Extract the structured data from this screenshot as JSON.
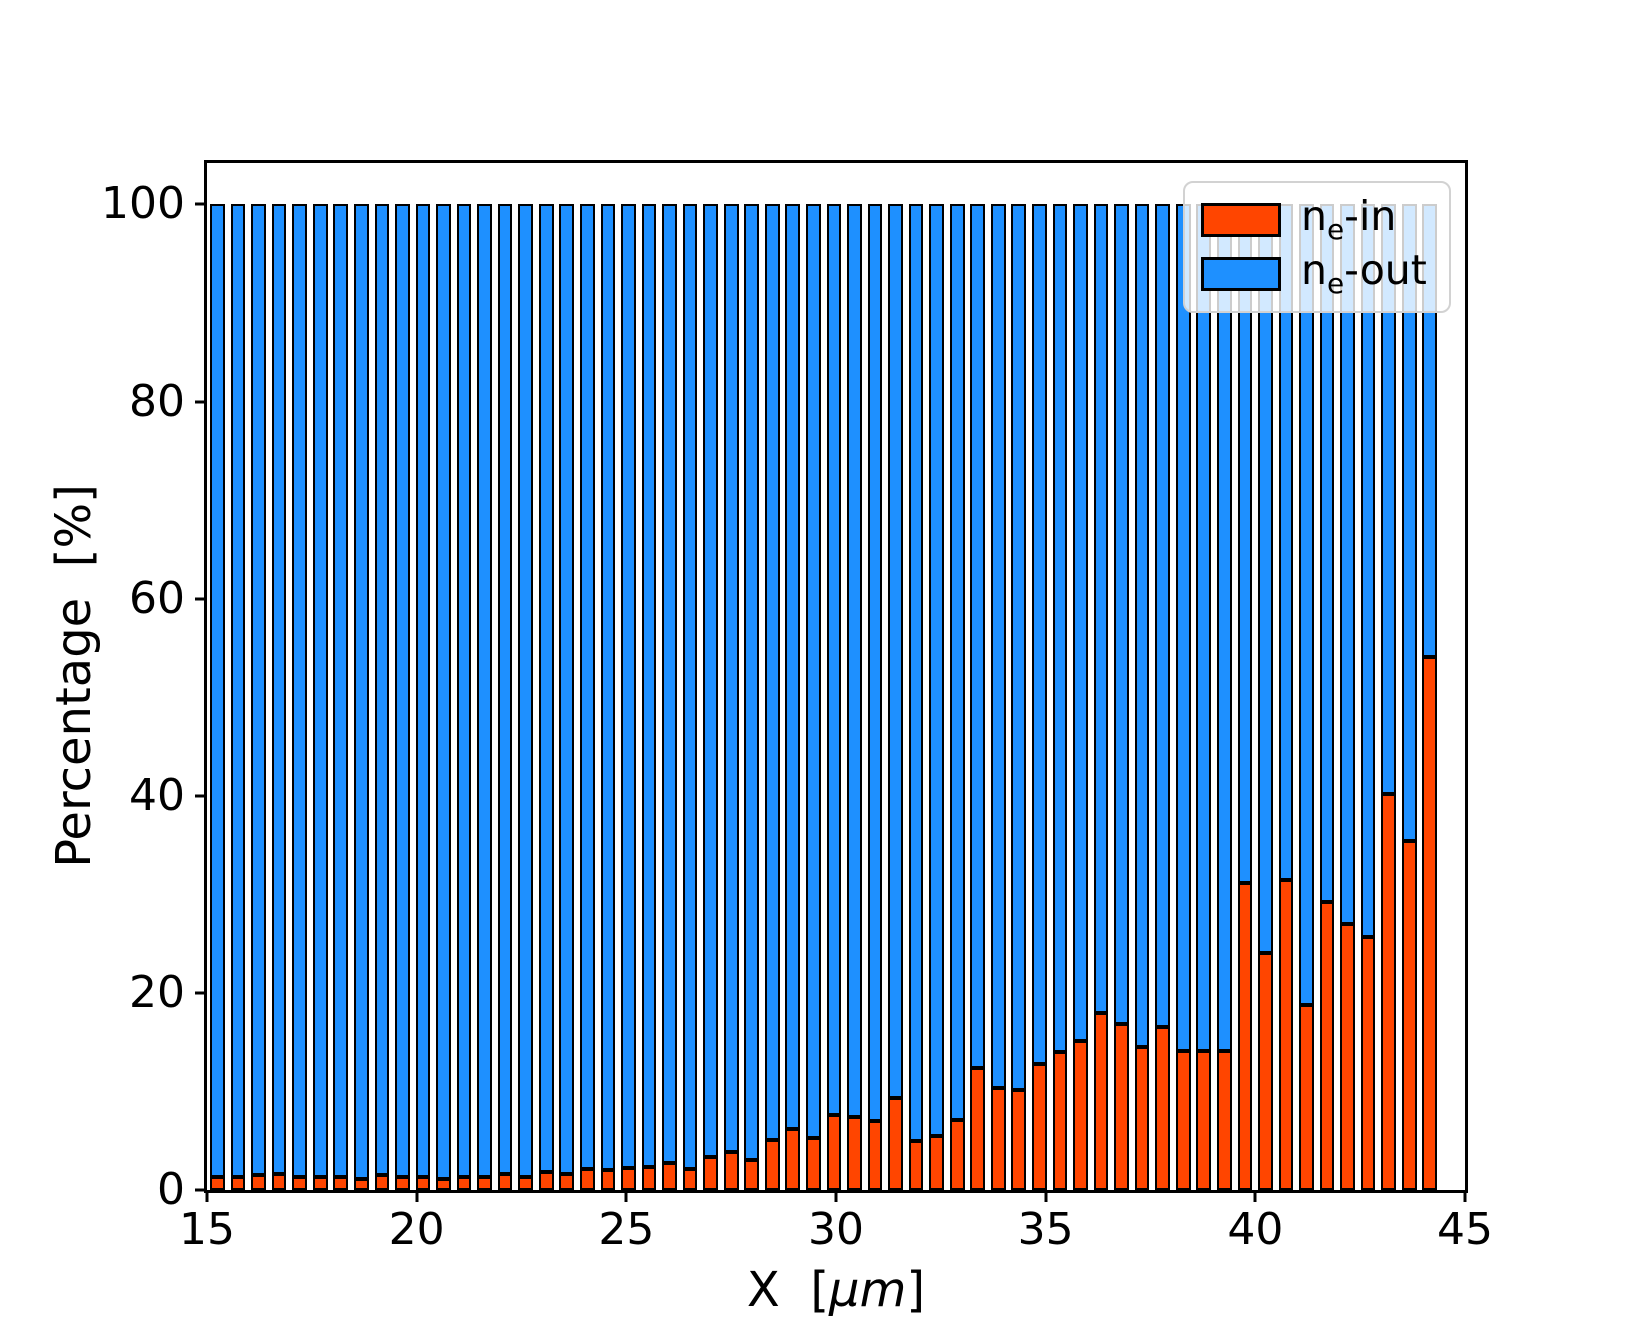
{
  "chart_data": {
    "type": "bar",
    "stacked": true,
    "title": "",
    "xlabel": {
      "pre": "X  [",
      "unit_italic": "μm",
      "post": "]"
    },
    "ylabel": "Percentage  [%]",
    "xlim": [
      15,
      45
    ],
    "ylim": [
      0,
      104.2
    ],
    "xticks": [
      15,
      20,
      25,
      30,
      35,
      40,
      45
    ],
    "yticks": [
      0,
      20,
      40,
      60,
      80,
      100
    ],
    "grid": false,
    "bar_width_data": 0.35,
    "bar_edge_color": "#000000",
    "axes_facecolor": "#ffffff",
    "legend_location": "upper right",
    "x": [
      15.25,
      15.74,
      16.23,
      16.72,
      17.21,
      17.7,
      18.19,
      18.68,
      19.17,
      19.66,
      20.15,
      20.64,
      21.13,
      21.62,
      22.11,
      22.6,
      23.09,
      23.58,
      24.07,
      24.56,
      25.05,
      25.54,
      26.03,
      26.52,
      27.01,
      27.5,
      27.99,
      28.48,
      28.97,
      29.46,
      29.95,
      30.44,
      30.93,
      31.42,
      31.91,
      32.4,
      32.89,
      33.38,
      33.87,
      34.36,
      34.85,
      35.34,
      35.83,
      36.32,
      36.81,
      37.3,
      37.79,
      38.28,
      38.77,
      39.26,
      39.75,
      40.24,
      40.73,
      41.22,
      41.71,
      42.2,
      42.69,
      43.18,
      43.67,
      44.16
    ],
    "series": [
      {
        "name": "ne-in",
        "color": "#ff4500",
        "values": [
          1.3,
          1.3,
          1.5,
          1.6,
          1.3,
          1.3,
          1.3,
          1.1,
          1.5,
          1.3,
          1.3,
          1.1,
          1.3,
          1.3,
          1.6,
          1.3,
          1.8,
          1.6,
          2.1,
          2.0,
          2.2,
          2.3,
          2.7,
          2.1,
          3.3,
          3.9,
          3.0,
          5.1,
          6.2,
          5.3,
          7.6,
          7.4,
          7.0,
          9.3,
          5.0,
          5.5,
          7.1,
          12.4,
          10.4,
          10.1,
          12.8,
          14.0,
          15.1,
          18.0,
          16.8,
          14.5,
          16.5,
          14.1,
          14.1,
          14.1,
          31.2,
          24.0,
          31.5,
          18.8,
          29.2,
          27.0,
          25.7,
          40.2,
          35.4,
          54.1
        ]
      },
      {
        "name": "ne-out",
        "color": "#1e90ff",
        "values": [
          98.7,
          98.7,
          98.5,
          98.4,
          98.7,
          98.7,
          98.7,
          98.9,
          98.5,
          98.7,
          98.7,
          98.9,
          98.7,
          98.7,
          98.4,
          98.7,
          98.2,
          98.4,
          97.9,
          98.0,
          97.8,
          97.7,
          97.3,
          97.9,
          96.7,
          96.1,
          97.0,
          94.9,
          93.8,
          94.7,
          92.4,
          92.6,
          93.0,
          90.7,
          95.0,
          94.5,
          92.9,
          87.6,
          89.6,
          89.9,
          87.2,
          86.0,
          84.9,
          82.0,
          83.2,
          85.5,
          83.5,
          85.9,
          85.9,
          85.9,
          68.8,
          76.0,
          68.5,
          81.2,
          70.8,
          73.0,
          74.3,
          59.8,
          64.6,
          45.9
        ]
      }
    ],
    "legend_entries": [
      {
        "base": "n",
        "sub": "e",
        "rest": "-in"
      },
      {
        "base": "n",
        "sub": "e",
        "rest": "-out"
      }
    ]
  }
}
